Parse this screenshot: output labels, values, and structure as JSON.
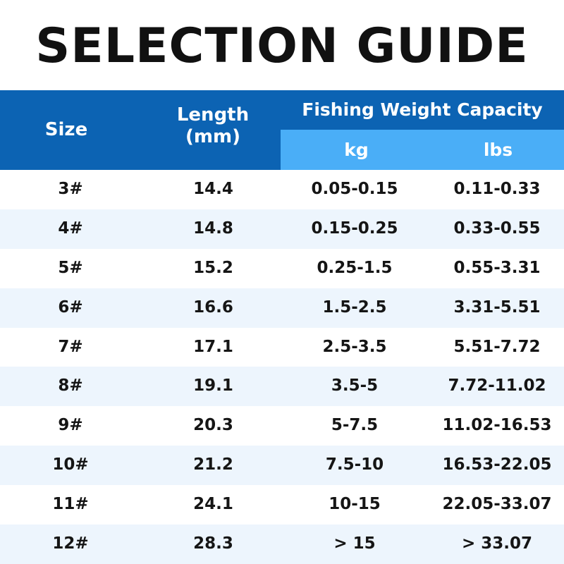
{
  "title": "SELECTION GUIDE",
  "table": {
    "headers": {
      "size": "Size",
      "length_line1": "Length",
      "length_line2": "(mm)",
      "capacity": "Fishing Weight Capacity",
      "kg": "kg",
      "lbs": "lbs"
    },
    "rows": [
      {
        "size": "3#",
        "length": "14.4",
        "kg": "0.05-0.15",
        "lbs": "0.11-0.33"
      },
      {
        "size": "4#",
        "length": "14.8",
        "kg": "0.15-0.25",
        "lbs": "0.33-0.55"
      },
      {
        "size": "5#",
        "length": "15.2",
        "kg": "0.25-1.5",
        "lbs": "0.55-3.31"
      },
      {
        "size": "6#",
        "length": "16.6",
        "kg": "1.5-2.5",
        "lbs": "3.31-5.51"
      },
      {
        "size": "7#",
        "length": "17.1",
        "kg": "2.5-3.5",
        "lbs": "5.51-7.72"
      },
      {
        "size": "8#",
        "length": "19.1",
        "kg": "3.5-5",
        "lbs": "7.72-11.02"
      },
      {
        "size": "9#",
        "length": "20.3",
        "kg": "5-7.5",
        "lbs": "11.02-16.53"
      },
      {
        "size": "10#",
        "length": "21.2",
        "kg": "7.5-10",
        "lbs": "16.53-22.05"
      },
      {
        "size": "11#",
        "length": "24.1",
        "kg": "10-15",
        "lbs": "22.05-33.07"
      },
      {
        "size": "12#",
        "length": "28.3",
        "kg": "> 15",
        "lbs": "> 33.07"
      }
    ]
  },
  "colors": {
    "header_dark": "#0c63b3",
    "header_light": "#4aaef7",
    "row_alt": "#edf5fd"
  }
}
